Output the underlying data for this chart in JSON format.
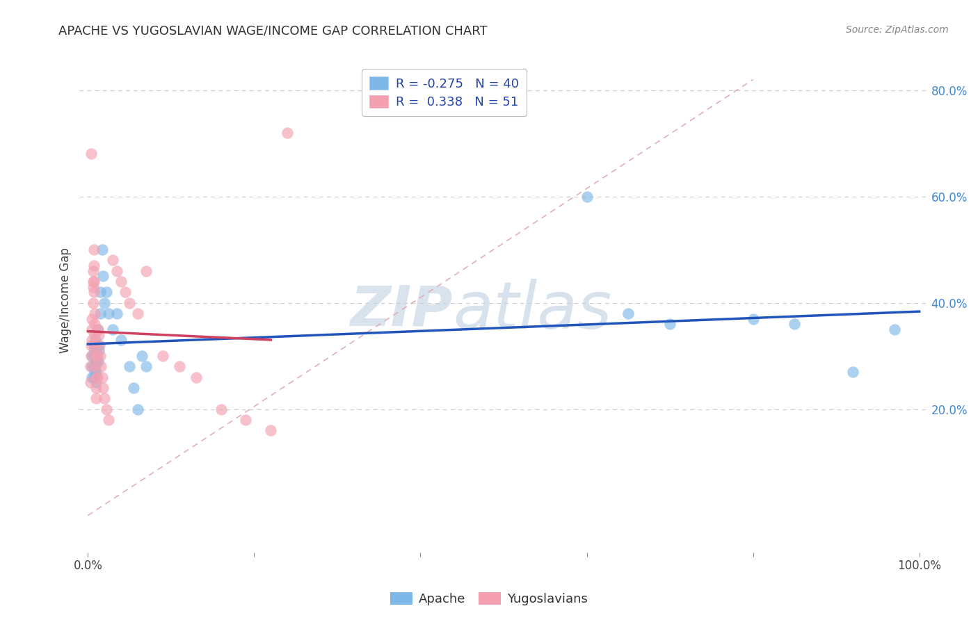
{
  "title": "APACHE VS YUGOSLAVIAN WAGE/INCOME GAP CORRELATION CHART",
  "source": "Source: ZipAtlas.com",
  "ylabel": "Wage/Income Gap",
  "ytick_labels": [
    "20.0%",
    "40.0%",
    "60.0%",
    "80.0%"
  ],
  "ytick_values": [
    0.2,
    0.4,
    0.6,
    0.8
  ],
  "xlim": [
    -0.01,
    1.01
  ],
  "ylim": [
    -0.07,
    0.88
  ],
  "legend_apache_R": "-0.275",
  "legend_apache_N": "40",
  "legend_yugo_R": "0.338",
  "legend_yugo_N": "51",
  "apache_color": "#7EB8E8",
  "yugo_color": "#F4A0B0",
  "apache_line_color": "#2255BB",
  "yugo_line_color": "#D04060",
  "diagonal_color": "#E0B0B8",
  "background_color": "#FFFFFF",
  "apache_x": [
    0.005,
    0.005,
    0.005,
    0.007,
    0.007,
    0.007,
    0.007,
    0.008,
    0.008,
    0.009,
    0.009,
    0.01,
    0.01,
    0.01,
    0.011,
    0.012,
    0.012,
    0.013,
    0.015,
    0.015,
    0.017,
    0.018,
    0.02,
    0.022,
    0.025,
    0.03,
    0.035,
    0.04,
    0.05,
    0.055,
    0.06,
    0.065,
    0.07,
    0.6,
    0.65,
    0.7,
    0.8,
    0.85,
    0.92,
    0.97
  ],
  "apache_y": [
    0.3,
    0.28,
    0.26,
    0.32,
    0.3,
    0.28,
    0.26,
    0.31,
    0.27,
    0.33,
    0.28,
    0.29,
    0.27,
    0.25,
    0.35,
    0.32,
    0.29,
    0.31,
    0.42,
    0.38,
    0.5,
    0.45,
    0.4,
    0.42,
    0.38,
    0.35,
    0.38,
    0.33,
    0.28,
    0.24,
    0.2,
    0.3,
    0.28,
    0.6,
    0.38,
    0.36,
    0.37,
    0.36,
    0.27,
    0.35
  ],
  "yugo_x": [
    0.003,
    0.003,
    0.004,
    0.004,
    0.005,
    0.005,
    0.005,
    0.006,
    0.006,
    0.006,
    0.006,
    0.007,
    0.007,
    0.007,
    0.007,
    0.008,
    0.008,
    0.008,
    0.008,
    0.009,
    0.009,
    0.01,
    0.01,
    0.01,
    0.011,
    0.011,
    0.012,
    0.013,
    0.014,
    0.015,
    0.016,
    0.017,
    0.018,
    0.02,
    0.022,
    0.025,
    0.03,
    0.035,
    0.04,
    0.045,
    0.05,
    0.06,
    0.07,
    0.09,
    0.11,
    0.13,
    0.16,
    0.19,
    0.22,
    0.004,
    0.24
  ],
  "yugo_y": [
    0.28,
    0.25,
    0.32,
    0.3,
    0.37,
    0.35,
    0.33,
    0.46,
    0.44,
    0.43,
    0.4,
    0.5,
    0.47,
    0.44,
    0.42,
    0.38,
    0.36,
    0.34,
    0.32,
    0.3,
    0.28,
    0.26,
    0.24,
    0.22,
    0.3,
    0.26,
    0.35,
    0.34,
    0.32,
    0.3,
    0.28,
    0.26,
    0.24,
    0.22,
    0.2,
    0.18,
    0.48,
    0.46,
    0.44,
    0.42,
    0.4,
    0.38,
    0.46,
    0.3,
    0.28,
    0.26,
    0.2,
    0.18,
    0.16,
    0.68,
    0.72
  ]
}
